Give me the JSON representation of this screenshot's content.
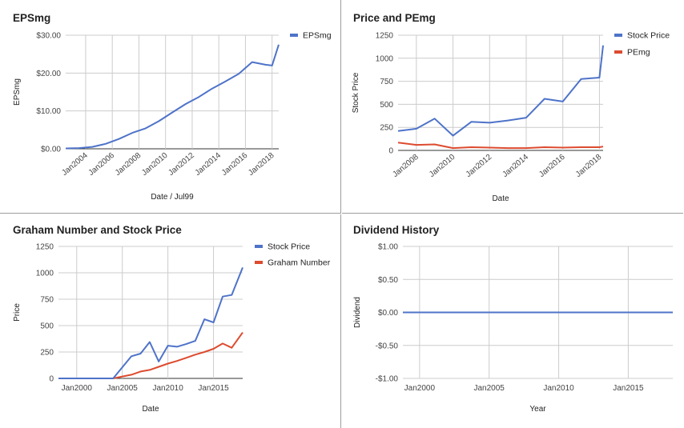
{
  "chart_data": [
    {
      "type": "line",
      "title": "EPSmg",
      "xlabel": "Date / Jul99",
      "ylabel": "EPSmg",
      "x_ticks": [
        {
          "label": "Jan2004",
          "x": 2004
        },
        {
          "label": "Jan2006",
          "x": 2006
        },
        {
          "label": "Jan2008",
          "x": 2008
        },
        {
          "label": "Jan2010",
          "x": 2010
        },
        {
          "label": "Jan2012",
          "x": 2012
        },
        {
          "label": "Jan2014",
          "x": 2014
        },
        {
          "label": "Jan2016",
          "x": 2016
        },
        {
          "label": "Jan2018",
          "x": 2018
        }
      ],
      "y_ticks": [
        {
          "label": "$0.00",
          "v": 0
        },
        {
          "label": "$10.00",
          "v": 10
        },
        {
          "label": "$20.00",
          "v": 20
        },
        {
          "label": "$30.00",
          "v": 30
        }
      ],
      "xlim": [
        2002.5,
        2018.5
      ],
      "ylim": [
        0,
        30
      ],
      "series": [
        {
          "name": "EPSmg",
          "color": "#4e73c9",
          "x": [
            2002.5,
            2003.5,
            2004.5,
            2005.5,
            2006.5,
            2007.5,
            2008.5,
            2009.5,
            2010.5,
            2011.5,
            2012.5,
            2013.5,
            2014.5,
            2015.5,
            2016.5,
            2017.5,
            2018.0,
            2018.5
          ],
          "y": [
            0.1,
            0.2,
            0.5,
            1.3,
            2.6,
            4.2,
            5.4,
            7.3,
            9.6,
            11.8,
            13.7,
            15.9,
            17.8,
            19.8,
            22.9,
            22.2,
            22.0,
            27.5
          ]
        }
      ],
      "legend": "top-right"
    },
    {
      "type": "line",
      "title": "Price and PEmg",
      "xlabel": "Date",
      "ylabel": "Stock Price",
      "x_ticks": [
        {
          "label": "Jan2008",
          "x": 2008
        },
        {
          "label": "Jan2010",
          "x": 2010
        },
        {
          "label": "Jan2012",
          "x": 2012
        },
        {
          "label": "Jan2014",
          "x": 2014
        },
        {
          "label": "Jan2016",
          "x": 2016
        },
        {
          "label": "Jan2018",
          "x": 2018
        }
      ],
      "y_ticks": [
        {
          "label": "0",
          "v": 0
        },
        {
          "label": "250",
          "v": 250
        },
        {
          "label": "500",
          "v": 500
        },
        {
          "label": "750",
          "v": 750
        },
        {
          "label": "1000",
          "v": 1000
        },
        {
          "label": "1250",
          "v": 1250
        }
      ],
      "xlim": [
        2007,
        2018.2
      ],
      "ylim": [
        0,
        1250
      ],
      "series": [
        {
          "name": "Stock Price",
          "color": "#4e73c9",
          "x": [
            2007.0,
            2008.0,
            2009.0,
            2010.0,
            2011.0,
            2012.0,
            2013.0,
            2014.0,
            2015.0,
            2016.0,
            2017.0,
            2018.0,
            2018.2
          ],
          "y": [
            210,
            235,
            345,
            160,
            310,
            300,
            325,
            355,
            560,
            530,
            775,
            790,
            1140
          ]
        },
        {
          "name": "PEmg",
          "color": "#dd4b2f",
          "x": [
            2007.0,
            2008.0,
            2009.0,
            2010.0,
            2011.0,
            2012.0,
            2013.0,
            2014.0,
            2015.0,
            2016.0,
            2017.0,
            2018.0,
            2018.2
          ],
          "y": [
            85,
            60,
            65,
            25,
            35,
            30,
            25,
            25,
            35,
            30,
            35,
            35,
            42
          ]
        }
      ],
      "legend": "top-right"
    },
    {
      "type": "line",
      "title": "Graham Number and Stock Price",
      "xlabel": "Date",
      "ylabel": "Price",
      "x_ticks": [
        {
          "label": "Jan2000",
          "x": 2000
        },
        {
          "label": "Jan2005",
          "x": 2005
        },
        {
          "label": "Jan2010",
          "x": 2010
        },
        {
          "label": "Jan2015",
          "x": 2015
        }
      ],
      "y_ticks": [
        {
          "label": "0",
          "v": 0
        },
        {
          "label": "250",
          "v": 250
        },
        {
          "label": "500",
          "v": 500
        },
        {
          "label": "750",
          "v": 750
        },
        {
          "label": "1000",
          "v": 1000
        },
        {
          "label": "1250",
          "v": 1250
        }
      ],
      "xlim": [
        1998,
        2018.2
      ],
      "ylim": [
        0,
        1250
      ],
      "series": [
        {
          "name": "Stock Price",
          "color": "#4e73c9",
          "x": [
            1998.0,
            2004.0,
            2006.0,
            2007.0,
            2008.0,
            2009.0,
            2010.0,
            2011.0,
            2012.0,
            2013.0,
            2014.0,
            2015.0,
            2016.0,
            2017.0,
            2018.2
          ],
          "y": [
            0,
            0,
            210,
            235,
            345,
            160,
            310,
            300,
            325,
            355,
            560,
            530,
            775,
            790,
            1050
          ]
        },
        {
          "name": "Graham Number",
          "color": "#dd4b2f",
          "x": [
            1998.0,
            2004.0,
            2006.0,
            2007.0,
            2008.0,
            2009.0,
            2010.0,
            2011.0,
            2012.0,
            2013.0,
            2014.0,
            2015.0,
            2016.0,
            2017.0,
            2018.2
          ],
          "y": [
            0,
            0,
            35,
            65,
            80,
            110,
            140,
            165,
            195,
            225,
            250,
            280,
            330,
            290,
            435
          ]
        }
      ],
      "legend": "top-right"
    },
    {
      "type": "line",
      "title": "Dividend History",
      "xlabel": "Year",
      "ylabel": "Dividend",
      "x_ticks": [
        {
          "label": "Jan2000",
          "x": 2000
        },
        {
          "label": "Jan2005",
          "x": 2005
        },
        {
          "label": "Jan2010",
          "x": 2010
        },
        {
          "label": "Jan2015",
          "x": 2015
        }
      ],
      "y_ticks": [
        {
          "label": "-$1.00",
          "v": -1
        },
        {
          "label": "-$0.50",
          "v": -0.5
        },
        {
          "label": "$0.00",
          "v": 0
        },
        {
          "label": "$0.50",
          "v": 0.5
        },
        {
          "label": "$1.00",
          "v": 1
        }
      ],
      "xlim": [
        1998.8,
        2018.2
      ],
      "ylim": [
        -1,
        1
      ],
      "series": [
        {
          "color": "#4e73c9",
          "x": [
            1998.8,
            2018.2
          ],
          "y": [
            0,
            0
          ]
        }
      ]
    }
  ]
}
